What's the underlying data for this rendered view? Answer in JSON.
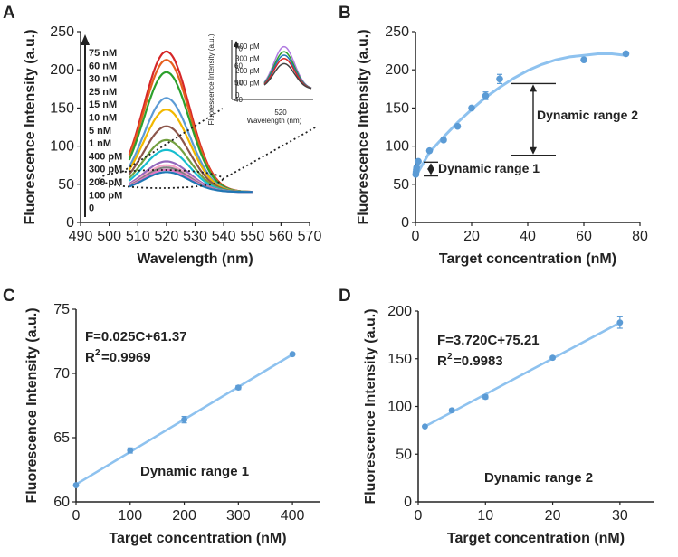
{
  "colors": {
    "fit": "#8ec2ef",
    "point": "#5b9bd5",
    "axis": "#222222",
    "spectra": [
      "#d62728",
      "#e65f1e",
      "#2ca02c",
      "#5b9bd5",
      "#f2b800",
      "#8c564b",
      "#74a040",
      "#17becf",
      "#9467bd",
      "#f5a3c7",
      "#7f7f7f",
      "#e377c2",
      "#1f77b4",
      "#bcbd22",
      "#ff7f0e"
    ]
  },
  "chart_data": [
    {
      "id": "A",
      "panel_label": "A",
      "type": "line",
      "xlabel": "Wavelength (nm)",
      "ylabel": "Fluorescence Intensity (a.u.)",
      "xlim": [
        490,
        570
      ],
      "ylim": [
        0,
        250
      ],
      "xticks": [
        490,
        500,
        510,
        520,
        530,
        540,
        550,
        560,
        570
      ],
      "yticks": [
        0,
        50,
        100,
        150,
        200,
        250
      ],
      "x_range": [
        507,
        550
      ],
      "peak_wavelength": 520,
      "series": [
        {
          "name": "75 nM",
          "peak": 224
        },
        {
          "name": "60 nM",
          "peak": 213
        },
        {
          "name": "30 nM",
          "peak": 197
        },
        {
          "name": "25 nM",
          "peak": 163
        },
        {
          "name": "15 nM",
          "peak": 148
        },
        {
          "name": "10 nM",
          "peak": 126
        },
        {
          "name": "5 nM",
          "peak": 108
        },
        {
          "name": "1 nM",
          "peak": 95
        },
        {
          "name": "400 pM",
          "peak": 80
        },
        {
          "name": "300 pM",
          "peak": 75
        },
        {
          "name": "200 pM",
          "peak": 72
        },
        {
          "name": "100 pM",
          "peak": 69
        },
        {
          "name": "0",
          "peak": 66
        }
      ],
      "legend": [
        "75 nM",
        "60 nM",
        "30 nM",
        "25 nM",
        "15 nM",
        "10 nM",
        "5 nM",
        "1 nM",
        "400 pM",
        "300 pM",
        "200 pM",
        "100 pM",
        "0"
      ],
      "inset": {
        "ylabel": "Fluorescence Intensity (a.u.)",
        "xlabel": "Wavelength (nm)",
        "xtick": "520",
        "yticks": [
          40,
          50,
          60,
          70
        ],
        "legend": [
          "400 pM",
          "300 pM",
          "200 pM",
          "100 pM",
          "0"
        ],
        "ylim": [
          40,
          75
        ],
        "peaks": [
          71,
          68,
          66,
          64,
          61
        ]
      }
    },
    {
      "id": "B",
      "panel_label": "B",
      "type": "scatter",
      "xlabel": "Target concentration (nM)",
      "ylabel": "Fluorescence Intensity (a.u.)",
      "xlim": [
        0,
        80
      ],
      "ylim": [
        0,
        250
      ],
      "xticks": [
        0,
        20,
        40,
        60,
        80
      ],
      "yticks": [
        0,
        50,
        100,
        150,
        200,
        250
      ],
      "x": [
        0.1,
        0.2,
        0.3,
        0.4,
        1,
        5,
        10,
        15,
        20,
        25,
        30,
        60,
        75
      ],
      "y": [
        63,
        66,
        69,
        72,
        80,
        94,
        108,
        126,
        150,
        166,
        188,
        213,
        221
      ],
      "err": [
        0,
        0,
        0,
        0,
        0,
        2,
        2,
        2,
        2,
        5,
        6,
        0,
        2
      ],
      "fit_x": [
        0,
        5,
        10,
        15,
        20,
        25,
        30,
        35,
        40,
        45,
        50,
        55,
        60,
        65,
        70,
        75
      ],
      "fit_y": [
        60,
        92,
        112,
        131,
        148,
        164,
        177,
        189,
        199,
        207,
        213,
        217,
        219,
        221,
        221,
        219
      ],
      "annotations": [
        "Dynamic range 1",
        "Dynamic range 2"
      ],
      "range1": [
        61,
        79
      ],
      "range2": [
        88,
        182
      ]
    },
    {
      "id": "C",
      "panel_label": "C",
      "type": "scatter",
      "xlabel": "Target concentration (nM)",
      "ylabel": "Fluorescence Intensity (a.u.)",
      "xlim": [
        0,
        450
      ],
      "ylim": [
        60,
        75
      ],
      "xticks": [
        0,
        100,
        200,
        300,
        400
      ],
      "yticks": [
        60,
        65,
        70,
        75
      ],
      "x": [
        0,
        100,
        200,
        300,
        400
      ],
      "y": [
        61.3,
        64.0,
        66.4,
        68.9,
        71.5
      ],
      "err": [
        0,
        0.2,
        0.25,
        0.15,
        0
      ],
      "equation": "F=0.025C+61.37",
      "r2_prefix": "R",
      "r2_sup": "2",
      "r2_value": "=0.9969",
      "label": "Dynamic range 1"
    },
    {
      "id": "D",
      "panel_label": "D",
      "type": "scatter",
      "xlabel": "Target concentration (nM)",
      "ylabel": "Fluorescence Intensity (a.u.)",
      "xlim": [
        0,
        35
      ],
      "ylim": [
        0,
        200
      ],
      "xticks": [
        0,
        10,
        20,
        30
      ],
      "yticks": [
        0,
        50,
        100,
        150,
        200
      ],
      "x": [
        1,
        5,
        10,
        20,
        30
      ],
      "y": [
        79,
        96,
        110,
        151,
        188
      ],
      "err": [
        0,
        1.5,
        2,
        1.5,
        6
      ],
      "equation": "F=3.720C+75.21",
      "r2_prefix": "R",
      "r2_sup": "2",
      "r2_value": "=0.9983",
      "label": "Dynamic range 2"
    }
  ]
}
